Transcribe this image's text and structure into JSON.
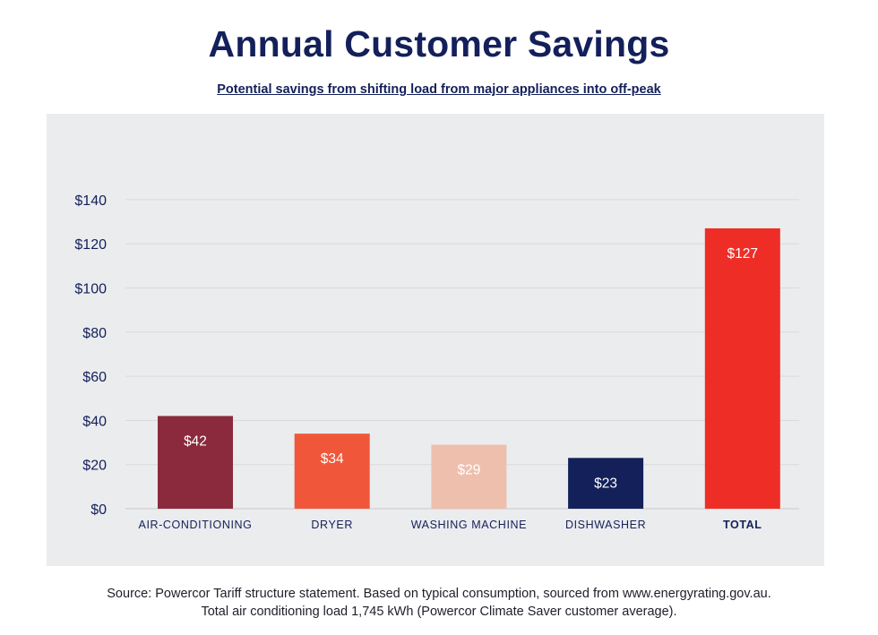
{
  "title": "Annual Customer Savings",
  "subtitle": "Potential savings from shifting load from major appliances into off-peak",
  "source": {
    "line1": "Source: Powercor Tariff structure statement. Based on typical consumption, sourced from www.energyrating.gov.au.",
    "line2": "Total air conditioning load 1,745 kWh (Powercor Climate Saver customer average)."
  },
  "chart_data": {
    "type": "bar",
    "title": "Annual Customer Savings",
    "subtitle": "Potential savings from shifting load from major appliances into off-peak",
    "xlabel": "",
    "ylabel": "",
    "ylim": [
      0,
      140
    ],
    "grid": true,
    "legend": "none",
    "y_tick_labels": [
      "$0",
      "$20",
      "$40",
      "$60",
      "$80",
      "$100",
      "$120",
      "$140"
    ],
    "y_tick_values": [
      0,
      20,
      40,
      60,
      80,
      100,
      120,
      140
    ],
    "categories": [
      "AIR-CONDITIONING",
      "DRYER",
      "WASHING MACHINE",
      "DISHWASHER",
      "TOTAL"
    ],
    "values": [
      42,
      34,
      29,
      23,
      127
    ],
    "data_labels": [
      "$42",
      "$34",
      "$29",
      "$23",
      "$127"
    ],
    "colors": [
      "#8b2a3c",
      "#f0573a",
      "#efbfae",
      "#14205a",
      "#ee2d27"
    ],
    "label_colors": [
      "#ffffff",
      "#ffffff",
      "#ffffff",
      "#ffffff",
      "#ffffff"
    ],
    "bold_categories": [
      "TOTAL"
    ],
    "gridline_color": "#d9dadd",
    "axis_text_color": "#14205a"
  }
}
